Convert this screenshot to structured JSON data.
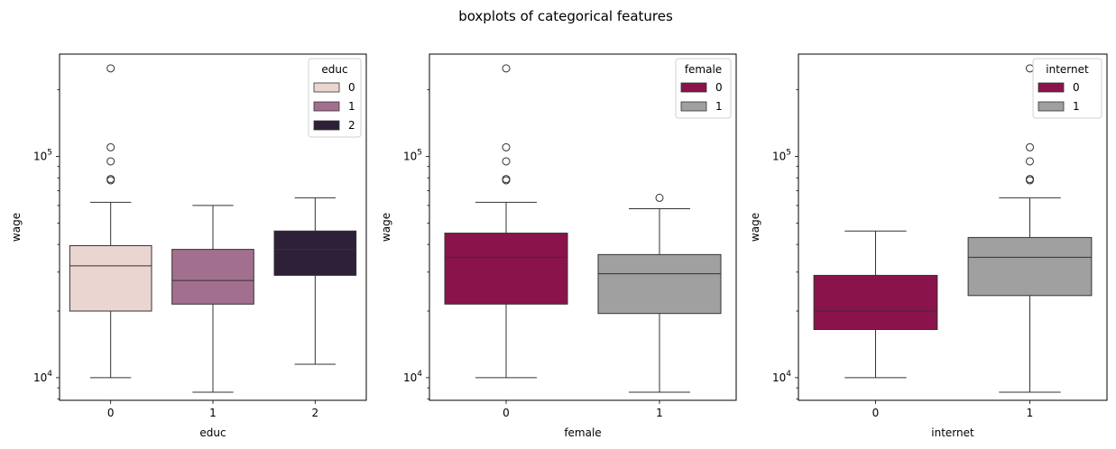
{
  "figure_title": "boxplots of categorical features",
  "chart_data": [
    {
      "type": "box",
      "xlabel": "educ",
      "ylabel": "wage",
      "yscale": "log",
      "ylim": [
        7900,
        290000
      ],
      "y_ticks": [
        {
          "value": 10000,
          "base": "10",
          "exp": "4"
        },
        {
          "value": 100000,
          "base": "10",
          "exp": "5"
        }
      ],
      "categories": [
        "0",
        "1",
        "2"
      ],
      "legend": {
        "title": "educ",
        "position": "top-right",
        "entries": [
          {
            "label": "0",
            "color": "#ead5d1"
          },
          {
            "label": "1",
            "color": "#a2708e"
          },
          {
            "label": "2",
            "color": "#2e2039"
          }
        ]
      },
      "boxes": [
        {
          "category": "0",
          "color": "#ead5d1",
          "whisker_low": 10000,
          "q1": 20000,
          "median": 32000,
          "q3": 39500,
          "whisker_high": 62000,
          "outliers": [
            78000,
            79000,
            95000,
            110000,
            250000
          ]
        },
        {
          "category": "1",
          "color": "#a2708e",
          "whisker_low": 8600,
          "q1": 21500,
          "median": 27500,
          "q3": 38000,
          "whisker_high": 60000,
          "outliers": []
        },
        {
          "category": "2",
          "color": "#2e2039",
          "whisker_low": 11500,
          "q1": 29000,
          "median": 38000,
          "q3": 46000,
          "whisker_high": 65000,
          "outliers": []
        }
      ]
    },
    {
      "type": "box",
      "xlabel": "female",
      "ylabel": "wage",
      "yscale": "log",
      "ylim": [
        7900,
        290000
      ],
      "y_ticks": [
        {
          "value": 10000,
          "base": "10",
          "exp": "4"
        },
        {
          "value": 100000,
          "base": "10",
          "exp": "5"
        }
      ],
      "categories": [
        "0",
        "1"
      ],
      "legend": {
        "title": "female",
        "position": "top-right",
        "entries": [
          {
            "label": "0",
            "color": "#8b134b"
          },
          {
            "label": "1",
            "color": "#a0a0a0"
          }
        ]
      },
      "boxes": [
        {
          "category": "0",
          "color": "#8b134b",
          "whisker_low": 10000,
          "q1": 21500,
          "median": 35000,
          "q3": 45000,
          "whisker_high": 62000,
          "outliers": [
            78000,
            79000,
            95000,
            110000,
            250000
          ]
        },
        {
          "category": "1",
          "color": "#a0a0a0",
          "whisker_low": 8600,
          "q1": 19500,
          "median": 29500,
          "q3": 36000,
          "whisker_high": 58000,
          "outliers": [
            65000
          ]
        }
      ]
    },
    {
      "type": "box",
      "xlabel": "internet",
      "ylabel": "wage",
      "yscale": "log",
      "ylim": [
        7900,
        290000
      ],
      "y_ticks": [
        {
          "value": 10000,
          "base": "10",
          "exp": "4"
        },
        {
          "value": 100000,
          "base": "10",
          "exp": "5"
        }
      ],
      "categories": [
        "0",
        "1"
      ],
      "legend": {
        "title": "internet",
        "position": "top-right",
        "entries": [
          {
            "label": "0",
            "color": "#8b134b"
          },
          {
            "label": "1",
            "color": "#a0a0a0"
          }
        ]
      },
      "boxes": [
        {
          "category": "0",
          "color": "#8b134b",
          "whisker_low": 10000,
          "q1": 16500,
          "median": 20000,
          "q3": 29000,
          "whisker_high": 46000,
          "outliers": []
        },
        {
          "category": "1",
          "color": "#a0a0a0",
          "whisker_low": 8600,
          "q1": 23500,
          "median": 35000,
          "q3": 43000,
          "whisker_high": 65000,
          "outliers": [
            78000,
            79000,
            95000,
            110000,
            250000
          ]
        }
      ]
    }
  ]
}
